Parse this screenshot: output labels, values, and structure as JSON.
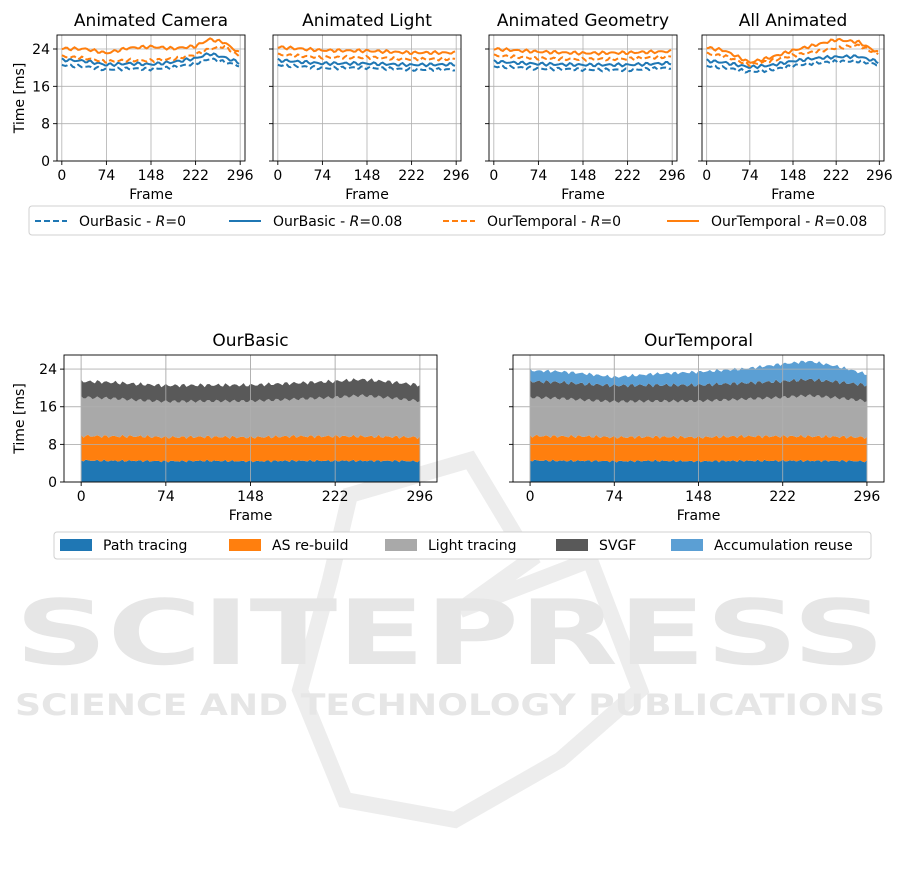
{
  "watermark": {
    "brand": "SCITEPRESS",
    "tagline": "SCIENCE AND TECHNOLOGY PUBLICATIONS",
    "color": "#e6e6e6"
  },
  "chart_data": [
    {
      "type": "line",
      "title": "Animated Camera",
      "xlabel": "Frame",
      "ylabel": "Time [ms]",
      "xlim": [
        -8,
        304
      ],
      "ylim": [
        0,
        27
      ],
      "xticks": [
        0,
        74,
        148,
        222,
        296
      ],
      "yticks": [
        0,
        8,
        16,
        24
      ],
      "grid": true,
      "series": [
        {
          "name": "OurBasic - R=0",
          "color": "#1f77b4",
          "style": "dashed",
          "x": [
            0,
            40,
            74,
            110,
            148,
            185,
            222,
            245,
            270,
            296
          ],
          "values": [
            20.6,
            20.2,
            19.6,
            19.8,
            19.7,
            20.1,
            20.9,
            21.9,
            21.2,
            20.4
          ]
        },
        {
          "name": "OurBasic - R=0.08",
          "color": "#1f77b4",
          "style": "solid",
          "x": [
            0,
            40,
            74,
            110,
            148,
            185,
            222,
            245,
            270,
            296
          ],
          "values": [
            21.7,
            21.4,
            20.6,
            20.9,
            20.7,
            21.2,
            22.0,
            23.0,
            22.2,
            21.0
          ]
        },
        {
          "name": "OurTemporal - R=0",
          "color": "#ff7f0e",
          "style": "dashed",
          "x": [
            0,
            40,
            74,
            110,
            148,
            185,
            222,
            245,
            270,
            296
          ],
          "values": [
            22.4,
            22.0,
            21.3,
            21.6,
            21.5,
            21.9,
            22.8,
            24.0,
            24.6,
            22.3
          ]
        },
        {
          "name": "OurTemporal - R=0.08",
          "color": "#ff7f0e",
          "style": "solid",
          "x": [
            0,
            40,
            74,
            110,
            148,
            185,
            222,
            245,
            270,
            296
          ],
          "values": [
            24.1,
            24.0,
            23.1,
            24.2,
            24.5,
            24.1,
            24.6,
            26.1,
            25.4,
            23.0
          ]
        }
      ]
    },
    {
      "type": "line",
      "title": "Animated Light",
      "xlabel": "Frame",
      "xlim": [
        -8,
        304
      ],
      "ylim": [
        0,
        27
      ],
      "xticks": [
        0,
        74,
        148,
        222,
        296
      ],
      "yticks": [
        0,
        8,
        16,
        24
      ],
      "grid": true,
      "series": [
        {
          "name": "OurBasic - R=0",
          "color": "#1f77b4",
          "style": "dashed",
          "x": [
            0,
            74,
            148,
            222,
            296
          ],
          "values": [
            20.6,
            19.9,
            20.0,
            19.6,
            19.6
          ]
        },
        {
          "name": "OurBasic - R=0.08",
          "color": "#1f77b4",
          "style": "solid",
          "x": [
            0,
            74,
            148,
            222,
            296
          ],
          "values": [
            21.6,
            20.9,
            20.9,
            20.6,
            20.7
          ]
        },
        {
          "name": "OurTemporal - R=0",
          "color": "#ff7f0e",
          "style": "dashed",
          "x": [
            0,
            74,
            148,
            222,
            296
          ],
          "values": [
            22.8,
            22.2,
            22.2,
            21.8,
            21.9
          ]
        },
        {
          "name": "OurTemporal - R=0.08",
          "color": "#ff7f0e",
          "style": "solid",
          "x": [
            0,
            74,
            148,
            222,
            296
          ],
          "values": [
            24.4,
            23.7,
            23.6,
            23.2,
            23.2
          ]
        }
      ]
    },
    {
      "type": "line",
      "title": "Animated Geometry",
      "xlabel": "Frame",
      "xlim": [
        -8,
        304
      ],
      "ylim": [
        0,
        27
      ],
      "xticks": [
        0,
        74,
        148,
        222,
        296
      ],
      "yticks": [
        0,
        8,
        16,
        24
      ],
      "grid": true,
      "series": [
        {
          "name": "OurBasic - R=0",
          "color": "#1f77b4",
          "style": "dashed",
          "x": [
            0,
            74,
            148,
            222,
            296
          ],
          "values": [
            20.3,
            19.8,
            19.6,
            19.5,
            20.0
          ]
        },
        {
          "name": "OurBasic - R=0.08",
          "color": "#1f77b4",
          "style": "solid",
          "x": [
            0,
            74,
            148,
            222,
            296
          ],
          "values": [
            21.3,
            20.8,
            20.6,
            20.6,
            21.0
          ]
        },
        {
          "name": "OurTemporal - R=0",
          "color": "#ff7f0e",
          "style": "dashed",
          "x": [
            0,
            74,
            148,
            222,
            296
          ],
          "values": [
            22.6,
            22.0,
            21.8,
            21.9,
            22.4
          ]
        },
        {
          "name": "OurTemporal - R=0.08",
          "color": "#ff7f0e",
          "style": "solid",
          "x": [
            0,
            74,
            148,
            222,
            296
          ],
          "values": [
            24.0,
            23.4,
            23.1,
            23.2,
            23.5
          ]
        }
      ]
    },
    {
      "type": "line",
      "title": "All Animated",
      "xlabel": "Frame",
      "xlim": [
        -8,
        304
      ],
      "ylim": [
        0,
        27
      ],
      "xticks": [
        0,
        74,
        148,
        222,
        296
      ],
      "yticks": [
        0,
        8,
        16,
        24
      ],
      "grid": true,
      "series": [
        {
          "name": "OurBasic - R=0",
          "color": "#1f77b4",
          "style": "dashed",
          "x": [
            0,
            30,
            74,
            110,
            148,
            185,
            222,
            260,
            296
          ],
          "values": [
            20.4,
            20.0,
            19.1,
            19.5,
            20.4,
            21.0,
            21.3,
            21.4,
            20.6
          ]
        },
        {
          "name": "OurBasic - R=0.08",
          "color": "#1f77b4",
          "style": "solid",
          "x": [
            0,
            30,
            74,
            110,
            148,
            185,
            222,
            260,
            296
          ],
          "values": [
            21.5,
            21.1,
            20.1,
            20.5,
            21.4,
            22.0,
            22.3,
            22.4,
            21.2
          ]
        },
        {
          "name": "OurTemporal - R=0",
          "color": "#ff7f0e",
          "style": "dashed",
          "x": [
            0,
            30,
            74,
            110,
            148,
            185,
            222,
            260,
            296
          ],
          "values": [
            23.0,
            22.5,
            20.6,
            21.5,
            22.6,
            23.4,
            24.2,
            24.8,
            22.8
          ]
        },
        {
          "name": "OurTemporal - R=0.08",
          "color": "#ff7f0e",
          "style": "solid",
          "x": [
            0,
            30,
            74,
            110,
            148,
            185,
            222,
            260,
            296
          ],
          "values": [
            24.3,
            23.7,
            21.1,
            22.2,
            23.7,
            24.8,
            26.0,
            25.5,
            23.1
          ]
        }
      ]
    },
    {
      "type": "area",
      "title": "OurBasic",
      "xlabel": "Frame",
      "ylabel": "Time [ms]",
      "xlim": [
        -15,
        311
      ],
      "ylim": [
        0,
        27
      ],
      "xticks": [
        0,
        74,
        148,
        222,
        296
      ],
      "yticks": [
        0,
        8,
        16,
        24
      ],
      "grid": true,
      "x": [
        0,
        25,
        50,
        74,
        110,
        148,
        185,
        222,
        245,
        270,
        296
      ],
      "series": [
        {
          "name": "Path tracing",
          "color": "#1f77b4",
          "values": [
            4.6,
            4.5,
            4.5,
            4.4,
            4.5,
            4.4,
            4.5,
            4.5,
            4.5,
            4.5,
            4.4
          ]
        },
        {
          "name": "AS re-build",
          "color": "#ff7f0e",
          "values": [
            5.2,
            5.2,
            5.2,
            5.1,
            5.1,
            5.1,
            5.2,
            5.2,
            5.2,
            5.1,
            5.1
          ]
        },
        {
          "name": "Light tracing",
          "color": "#a9a9a9",
          "values": [
            8.2,
            8.1,
            7.7,
            7.6,
            7.6,
            7.7,
            7.9,
            8.3,
            8.7,
            8.3,
            7.7
          ]
        },
        {
          "name": "SVGF",
          "color": "#595959",
          "values": [
            3.4,
            3.4,
            3.4,
            3.4,
            3.4,
            3.4,
            3.4,
            3.4,
            3.4,
            3.4,
            3.4
          ]
        }
      ]
    },
    {
      "type": "area",
      "title": "OurTemporal",
      "xlabel": "Frame",
      "xlim": [
        -15,
        311
      ],
      "ylim": [
        0,
        27
      ],
      "xticks": [
        0,
        74,
        148,
        222,
        296
      ],
      "yticks": [
        0,
        8,
        16,
        24
      ],
      "grid": true,
      "x": [
        0,
        25,
        50,
        74,
        110,
        148,
        185,
        222,
        245,
        270,
        296
      ],
      "series": [
        {
          "name": "Path tracing",
          "color": "#1f77b4",
          "values": [
            4.6,
            4.5,
            4.5,
            4.4,
            4.5,
            4.4,
            4.5,
            4.5,
            4.5,
            4.5,
            4.4
          ]
        },
        {
          "name": "AS re-build",
          "color": "#ff7f0e",
          "values": [
            5.2,
            5.2,
            5.2,
            5.1,
            5.1,
            5.1,
            5.2,
            5.2,
            5.2,
            5.1,
            5.1
          ]
        },
        {
          "name": "Light tracing",
          "color": "#a9a9a9",
          "values": [
            8.2,
            8.1,
            7.7,
            7.6,
            7.6,
            7.7,
            7.9,
            8.3,
            8.7,
            8.3,
            7.7
          ]
        },
        {
          "name": "SVGF",
          "color": "#595959",
          "values": [
            3.4,
            3.4,
            3.4,
            3.4,
            3.4,
            3.4,
            3.4,
            3.4,
            3.4,
            3.4,
            3.4
          ]
        },
        {
          "name": "Accumulation reuse",
          "color": "#5b9fd4",
          "values": [
            2.3,
            2.3,
            2.2,
            1.8,
            2.4,
            2.8,
            3.0,
            3.7,
            3.9,
            3.3,
            2.3
          ]
        }
      ]
    }
  ],
  "legend_top": {
    "placement": "below-plots",
    "entries": [
      {
        "prefix": "OurBasic - ",
        "var": "R",
        "suffix": "=0",
        "color": "#1f77b4",
        "style": "dashed"
      },
      {
        "prefix": "OurBasic - ",
        "var": "R",
        "suffix": "=0.08",
        "color": "#1f77b4",
        "style": "solid"
      },
      {
        "prefix": "OurTemporal - ",
        "var": "R",
        "suffix": "=0",
        "color": "#ff7f0e",
        "style": "dashed"
      },
      {
        "prefix": "OurTemporal - ",
        "var": "R",
        "suffix": "=0.08",
        "color": "#ff7f0e",
        "style": "solid"
      }
    ]
  },
  "legend_bottom": {
    "placement": "below-plots",
    "entries": [
      {
        "label": "Path tracing",
        "color": "#1f77b4"
      },
      {
        "label": "AS re-build",
        "color": "#ff7f0e"
      },
      {
        "label": "Light tracing",
        "color": "#a9a9a9"
      },
      {
        "label": "SVGF",
        "color": "#595959"
      },
      {
        "label": "Accumulation reuse",
        "color": "#5b9fd4"
      }
    ]
  }
}
